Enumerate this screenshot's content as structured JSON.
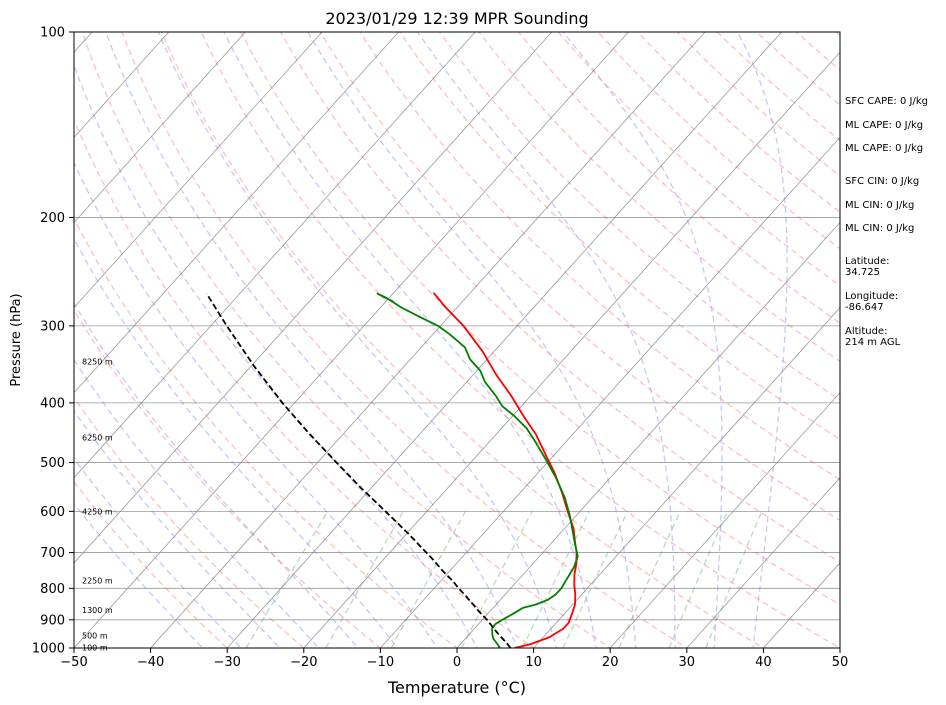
{
  "chart_data": {
    "type": "line",
    "subtype": "skew-t log-p sounding",
    "title": "2023/01/29 12:39 MPR Sounding",
    "xlabel": "Temperature (°C)",
    "ylabel": "Pressure (hPa)",
    "xlim": [
      -50,
      50
    ],
    "ylim": [
      1000,
      100
    ],
    "yscale": "log",
    "grid": true,
    "x_ticks": [
      -50,
      -40,
      -30,
      -20,
      -10,
      0,
      10,
      20,
      30,
      40,
      50
    ],
    "y_ticks": [
      100,
      200,
      300,
      400,
      500,
      600,
      700,
      800,
      900,
      1000
    ],
    "height_labels": [
      {
        "p": 998,
        "label": "100 m"
      },
      {
        "p": 955,
        "label": "500 m"
      },
      {
        "p": 868,
        "label": "1300 m"
      },
      {
        "p": 777,
        "label": "2250 m"
      },
      {
        "p": 600,
        "label": "4250 m"
      },
      {
        "p": 455,
        "label": "6250 m"
      },
      {
        "p": 343,
        "label": "8250 m"
      }
    ],
    "series": [
      {
        "id": "temperature",
        "color": "#ff0000",
        "points": [
          [
            1000,
            7.5
          ],
          [
            985,
            9.2
          ],
          [
            960,
            10.8
          ],
          [
            930,
            11.6
          ],
          [
            910,
            11.6
          ],
          [
            880,
            11.0
          ],
          [
            850,
            10.3
          ],
          [
            820,
            9.2
          ],
          [
            790,
            7.9
          ],
          [
            760,
            6.7
          ],
          [
            730,
            5.7
          ],
          [
            700,
            4.4
          ],
          [
            670,
            2.8
          ],
          [
            640,
            1.2
          ],
          [
            600,
            -1.6
          ],
          [
            560,
            -4.5
          ],
          [
            520,
            -7.8
          ],
          [
            480,
            -11.7
          ],
          [
            450,
            -14.8
          ],
          [
            420,
            -18.6
          ],
          [
            390,
            -22.5
          ],
          [
            360,
            -27.0
          ],
          [
            330,
            -31.5
          ],
          [
            300,
            -37.0
          ],
          [
            280,
            -41.5
          ],
          [
            265,
            -44.8
          ]
        ]
      },
      {
        "id": "dewpoint",
        "color": "#008000",
        "points": [
          [
            1000,
            5.6
          ],
          [
            985,
            4.8
          ],
          [
            965,
            3.6
          ],
          [
            950,
            3.0
          ],
          [
            930,
            2.3
          ],
          [
            915,
            2.2
          ],
          [
            900,
            2.6
          ],
          [
            880,
            3.3
          ],
          [
            860,
            3.9
          ],
          [
            850,
            5.2
          ],
          [
            835,
            6.2
          ],
          [
            820,
            6.6
          ],
          [
            800,
            6.6
          ],
          [
            770,
            6.2
          ],
          [
            740,
            5.8
          ],
          [
            710,
            5.0
          ],
          [
            680,
            3.3
          ],
          [
            650,
            1.6
          ],
          [
            610,
            -0.8
          ],
          [
            570,
            -3.6
          ],
          [
            530,
            -7.0
          ],
          [
            490,
            -11.0
          ],
          [
            460,
            -14.3
          ],
          [
            440,
            -16.7
          ],
          [
            420,
            -19.8
          ],
          [
            405,
            -22.5
          ],
          [
            390,
            -24.5
          ],
          [
            370,
            -27.6
          ],
          [
            355,
            -29.5
          ],
          [
            340,
            -32.2
          ],
          [
            325,
            -34.3
          ],
          [
            310,
            -37.7
          ],
          [
            300,
            -40.3
          ],
          [
            290,
            -43.8
          ],
          [
            280,
            -47.3
          ],
          [
            270,
            -50.4
          ],
          [
            266,
            -52.0
          ],
          [
            274,
            -49.0
          ]
        ]
      },
      {
        "id": "parcel",
        "color": "#000000",
        "dashed": true,
        "points": [
          [
            1000,
            7.0
          ],
          [
            980,
            5.8
          ],
          [
            950,
            3.8
          ],
          [
            920,
            1.9
          ],
          [
            900,
            0.6
          ],
          [
            870,
            -1.6
          ],
          [
            850,
            -3.0
          ],
          [
            820,
            -5.2
          ],
          [
            800,
            -6.8
          ],
          [
            780,
            -8.3
          ],
          [
            750,
            -10.9
          ],
          [
            720,
            -13.4
          ],
          [
            700,
            -15.2
          ],
          [
            650,
            -20.0
          ],
          [
            600,
            -25.4
          ],
          [
            550,
            -31.3
          ],
          [
            500,
            -37.5
          ],
          [
            450,
            -44.3
          ],
          [
            400,
            -51.6
          ],
          [
            350,
            -59.4
          ],
          [
            300,
            -67.9
          ],
          [
            266,
            -74.3
          ]
        ]
      }
    ],
    "side_text": {
      "sfc_cape": "SFC CAPE: 0 J/kg",
      "ml_cape_1": "ML CAPE: 0 J/kg",
      "ml_cape_2": "ML CAPE: 0 J/kg",
      "sfc_cin": "SFC CIN: 0 J/kg",
      "ml_cin_1": "ML CIN: 0 J/kg",
      "ml_cin_2": "ML CIN: 0 J/kg",
      "latitude_label": "Latitude:",
      "latitude_value": "34.725",
      "longitude_label": "Longitude:",
      "longitude_value": "-86.647",
      "altitude_label": "Altitude:",
      "altitude_value": "214 m AGL"
    },
    "colors": {
      "isotherm": "#808080",
      "isobar": "#808080",
      "dry_adiabat": "#ff8080",
      "moist_adiabat": "#8080ff",
      "mixing_ratio": "#60b060"
    }
  }
}
